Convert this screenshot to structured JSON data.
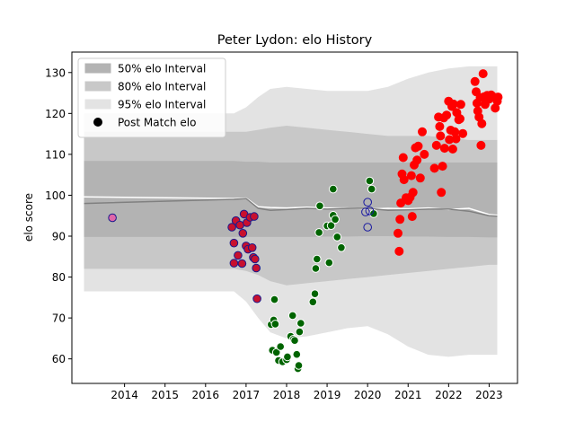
{
  "chart_data": {
    "type": "scatter",
    "title": "Peter Lydon: elo History",
    "xlabel": "",
    "ylabel": "elo score",
    "xlim": [
      2012.7,
      2023.7
    ],
    "ylim": [
      54,
      135
    ],
    "xticks": [
      2014,
      2015,
      2016,
      2017,
      2018,
      2019,
      2020,
      2021,
      2022,
      2023
    ],
    "yticks": [
      60,
      70,
      80,
      90,
      100,
      110,
      120,
      130
    ],
    "grid": false,
    "legend": {
      "placement": "top-left",
      "entries": [
        {
          "label": "50% elo Interval",
          "color": "#b3b3b3"
        },
        {
          "label": "80% elo Interval",
          "color": "#c8c8c8"
        },
        {
          "label": "95% elo Interval",
          "color": "#e3e3e3"
        },
        {
          "label": "Post Match elo",
          "color": "#000000"
        }
      ]
    },
    "colors": {
      "band50": "#b3b3b3",
      "band80": "#c8c8c8",
      "band95": "#e3e3e3",
      "median_line": "#808080",
      "mean_line": "#ffffff",
      "pink": "#e066a8",
      "purple_edge": "#1a1a8c",
      "crimson": "#c8102e",
      "green": "#006400",
      "open_edge": "#1a1aa0",
      "red": "#ff0000"
    },
    "bands": {
      "x": [
        2013.0,
        2016.7,
        2017.0,
        2017.3,
        2017.6,
        2018.0,
        2018.5,
        2019.0,
        2019.5,
        2020.0,
        2020.5,
        2021.0,
        2021.5,
        2022.0,
        2022.5,
        2023.0,
        2023.2
      ],
      "q50lo": [
        89.8,
        89.8,
        89.8,
        89.8,
        89.8,
        89.8,
        89.8,
        89.9,
        89.9,
        90.0,
        90.0,
        89.9,
        89.9,
        89.8,
        89.8,
        89.7,
        89.7
      ],
      "q50hi": [
        108.4,
        108.4,
        108.2,
        108.2,
        108.0,
        108.0,
        108.0,
        108.0,
        108.0,
        108.0,
        108.0,
        108.0,
        108.0,
        108.0,
        108.0,
        108.0,
        108.0
      ],
      "q80lo": [
        82.0,
        82.0,
        81.5,
        80.5,
        79.0,
        78.0,
        78.5,
        79.0,
        79.5,
        80.0,
        80.5,
        81.0,
        81.5,
        82.0,
        82.5,
        83.0,
        83.0
      ],
      "q80hi": [
        115.5,
        115.5,
        115.5,
        116.0,
        116.5,
        117.0,
        116.5,
        116.0,
        115.5,
        115.0,
        114.5,
        114.5,
        114.5,
        114.0,
        113.5,
        113.5,
        113.5
      ],
      "q95lo": [
        76.5,
        76.5,
        74.0,
        70.0,
        66.5,
        65.0,
        65.5,
        66.5,
        67.5,
        68.0,
        66.0,
        63.0,
        61.0,
        60.5,
        61.0,
        61.0,
        61.0
      ],
      "q95hi": [
        120.0,
        120.0,
        121.5,
        124.0,
        126.0,
        126.5,
        126.0,
        125.5,
        125.5,
        125.5,
        126.5,
        128.5,
        130.0,
        131.0,
        131.5,
        131.5,
        131.5
      ],
      "median": [
        98.0,
        99.0,
        99.2,
        96.8,
        96.3,
        96.5,
        96.8,
        96.6,
        96.8,
        96.8,
        96.3,
        96.4,
        96.6,
        96.6,
        96.1,
        95.0,
        94.9
      ],
      "mean": [
        99.6,
        99.2,
        99.3,
        97.2,
        97.0,
        96.9,
        97.1,
        96.9,
        96.9,
        96.6,
        96.8,
        96.7,
        96.9,
        96.5,
        96.8,
        95.3,
        95.1
      ]
    },
    "series": [
      {
        "style": "pink",
        "points": [
          [
            2013.7,
            94.5
          ]
        ]
      },
      {
        "style": "crimson",
        "points": [
          [
            2016.65,
            92.2
          ],
          [
            2016.7,
            88.3
          ],
          [
            2016.7,
            83.4
          ],
          [
            2016.75,
            93.8
          ],
          [
            2016.8,
            85.3
          ],
          [
            2016.85,
            92.7
          ],
          [
            2016.9,
            83.3
          ],
          [
            2016.92,
            90.7
          ],
          [
            2016.95,
            95.4
          ],
          [
            2017.0,
            87.6
          ],
          [
            2017.02,
            93.3
          ],
          [
            2017.05,
            86.8
          ],
          [
            2017.1,
            94.6
          ],
          [
            2017.15,
            87.2
          ],
          [
            2017.18,
            84.8
          ],
          [
            2017.2,
            94.8
          ],
          [
            2017.22,
            84.4
          ],
          [
            2017.25,
            82.2
          ],
          [
            2017.27,
            74.7
          ]
        ]
      },
      {
        "style": "green",
        "points": [
          [
            2017.62,
            68.4
          ],
          [
            2017.65,
            62.1
          ],
          [
            2017.68,
            69.5
          ],
          [
            2017.7,
            74.5
          ],
          [
            2017.72,
            68.5
          ],
          [
            2017.75,
            61.6
          ],
          [
            2017.8,
            59.6
          ],
          [
            2017.85,
            63.0
          ],
          [
            2017.9,
            59.3
          ],
          [
            2018.0,
            59.8
          ],
          [
            2018.02,
            60.5
          ],
          [
            2018.1,
            65.5
          ],
          [
            2018.15,
            70.6
          ],
          [
            2018.17,
            64.8
          ],
          [
            2018.2,
            64.5
          ],
          [
            2018.25,
            61.1
          ],
          [
            2018.28,
            57.6
          ],
          [
            2018.3,
            58.4
          ],
          [
            2018.32,
            66.6
          ],
          [
            2018.35,
            68.7
          ],
          [
            2018.65,
            73.9
          ],
          [
            2018.7,
            75.9
          ],
          [
            2018.72,
            82.1
          ],
          [
            2018.75,
            84.4
          ],
          [
            2018.8,
            90.9
          ],
          [
            2018.82,
            97.4
          ],
          [
            2019.0,
            92.5
          ],
          [
            2019.05,
            83.5
          ],
          [
            2019.1,
            92.6
          ],
          [
            2019.15,
            101.5
          ],
          [
            2019.15,
            95.1
          ],
          [
            2019.2,
            94.1
          ],
          [
            2019.25,
            89.8
          ],
          [
            2019.35,
            87.2
          ],
          [
            2020.05,
            103.5
          ],
          [
            2020.1,
            101.5
          ],
          [
            2020.15,
            95.5
          ]
        ]
      },
      {
        "style": "open",
        "points": [
          [
            2019.95,
            95.9
          ],
          [
            2020.0,
            98.3
          ],
          [
            2020.0,
            92.2
          ],
          [
            2020.05,
            96.2
          ]
        ]
      },
      {
        "style": "red",
        "points": [
          [
            2020.75,
            90.7
          ],
          [
            2020.78,
            86.3
          ],
          [
            2020.8,
            94.1
          ],
          [
            2020.82,
            98.1
          ],
          [
            2020.85,
            105.2
          ],
          [
            2020.88,
            109.2
          ],
          [
            2020.9,
            103.8
          ],
          [
            2020.95,
            99.4
          ],
          [
            2021.0,
            98.7
          ],
          [
            2021.05,
            99.5
          ],
          [
            2021.08,
            104.8
          ],
          [
            2021.1,
            94.8
          ],
          [
            2021.12,
            100.7
          ],
          [
            2021.15,
            107.4
          ],
          [
            2021.18,
            111.6
          ],
          [
            2021.22,
            108.6
          ],
          [
            2021.25,
            112.0
          ],
          [
            2021.3,
            104.2
          ],
          [
            2021.35,
            115.5
          ],
          [
            2021.4,
            110.0
          ],
          [
            2021.65,
            106.6
          ],
          [
            2021.7,
            112.2
          ],
          [
            2021.75,
            119.1
          ],
          [
            2021.78,
            116.8
          ],
          [
            2021.8,
            114.5
          ],
          [
            2021.82,
            100.7
          ],
          [
            2021.85,
            107.1
          ],
          [
            2021.88,
            118.9
          ],
          [
            2021.9,
            111.5
          ],
          [
            2021.95,
            119.6
          ],
          [
            2022.0,
            123.0
          ],
          [
            2022.02,
            113.6
          ],
          [
            2022.05,
            115.9
          ],
          [
            2022.08,
            121.7
          ],
          [
            2022.1,
            111.3
          ],
          [
            2022.12,
            122.3
          ],
          [
            2022.15,
            115.5
          ],
          [
            2022.18,
            113.8
          ],
          [
            2022.2,
            120.2
          ],
          [
            2022.25,
            118.5
          ],
          [
            2022.28,
            118.7
          ],
          [
            2022.3,
            122.2
          ],
          [
            2022.35,
            115.1
          ],
          [
            2022.65,
            127.8
          ],
          [
            2022.68,
            125.3
          ],
          [
            2022.7,
            122.5
          ],
          [
            2022.72,
            120.6
          ],
          [
            2022.75,
            119.1
          ],
          [
            2022.78,
            123.9
          ],
          [
            2022.8,
            112.2
          ],
          [
            2022.82,
            117.5
          ],
          [
            2022.85,
            129.7
          ],
          [
            2022.88,
            124.1
          ],
          [
            2022.9,
            122.2
          ],
          [
            2022.95,
            124.4
          ],
          [
            2023.0,
            123.5
          ],
          [
            2023.05,
            124.5
          ],
          [
            2023.1,
            124.1
          ],
          [
            2023.15,
            121.3
          ],
          [
            2023.2,
            123.0
          ],
          [
            2023.22,
            124.0
          ]
        ]
      }
    ]
  }
}
